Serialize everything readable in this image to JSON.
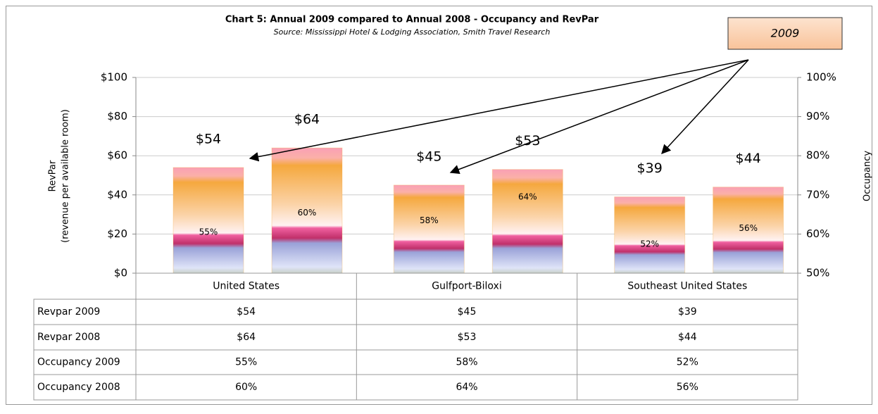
{
  "chart_data": {
    "type": "bar",
    "title": "Chart 5: Annual 2009 compared to Annual 2008 - Occupancy and RevPar",
    "subtitle": "Source: Mississippi Hotel & Lodging Association, Smith Travel Research",
    "annotation": "2009",
    "y_label": [
      "RevPar",
      "(revenue per available room)"
    ],
    "y2_label": "Occupancy",
    "categories": [
      "United States",
      "Gulfport-Biloxi",
      "Southeast United States"
    ],
    "series": [
      {
        "name": "Revpar 2009",
        "color": "#f5a83e",
        "values": [
          54,
          45,
          39
        ],
        "value_labels": [
          "$54",
          "$45",
          "$39"
        ]
      },
      {
        "name": "Revpar 2008",
        "color": "#f5a83e",
        "values": [
          64,
          53,
          44
        ],
        "value_labels": [
          "$64",
          "$53",
          "$44"
        ]
      },
      {
        "name": "Occupancy 2009",
        "axis": "y2",
        "values": [
          55,
          58,
          52
        ],
        "value_labels": [
          "55%",
          "58%",
          "52%"
        ]
      },
      {
        "name": "Occupancy 2008",
        "axis": "y2",
        "values": [
          60,
          64,
          56
        ],
        "value_labels": [
          "60%",
          "64%",
          "56%"
        ]
      }
    ],
    "ylim": [
      0,
      100
    ],
    "yticks": [
      {
        "value": 0,
        "label": "$0"
      },
      {
        "value": 20,
        "label": "$20"
      },
      {
        "value": 40,
        "label": "$40"
      },
      {
        "value": 60,
        "label": "$60"
      },
      {
        "value": 80,
        "label": "$80"
      },
      {
        "value": 100,
        "label": "$100"
      }
    ],
    "y2lim": [
      50,
      100
    ],
    "y2ticks": [
      {
        "value": 50,
        "label": "50%"
      },
      {
        "value": 60,
        "label": "60%"
      },
      {
        "value": 70,
        "label": "70%"
      },
      {
        "value": 80,
        "label": "80%"
      },
      {
        "value": 90,
        "label": "90%"
      },
      {
        "value": 100,
        "label": "100%"
      }
    ],
    "grid": true
  }
}
